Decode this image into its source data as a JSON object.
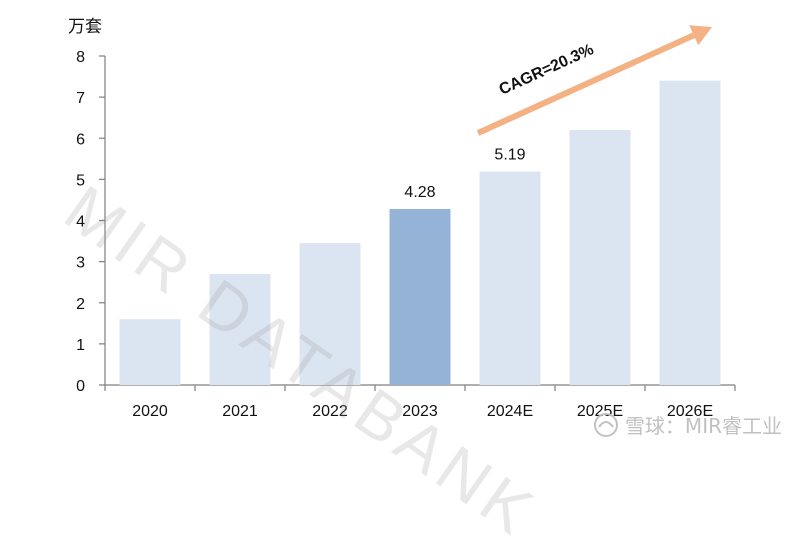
{
  "unit_label": "万套",
  "watermark_text": "MIR DATABANK",
  "footer_mark": "雪球：MIR睿工业",
  "cagr_label": "CAGR=20.3%",
  "colors": {
    "bar_default": "#dbe5f1",
    "bar_highlight": "#95b3d7",
    "axis": "#7f7f7f",
    "arrow": "#f4b183"
  },
  "chart_data": {
    "type": "bar",
    "categories": [
      "2020",
      "2021",
      "2022",
      "2023",
      "2024E",
      "2025E",
      "2026E"
    ],
    "values": [
      1.6,
      2.7,
      3.45,
      4.28,
      5.19,
      6.2,
      7.4
    ],
    "highlight_index": 3,
    "data_labels": [
      {
        "index": 3,
        "text": "4.28"
      },
      {
        "index": 4,
        "text": "5.19"
      }
    ],
    "ylim": [
      0,
      8
    ],
    "yticks": [
      0,
      1,
      2,
      3,
      4,
      5,
      6,
      7,
      8
    ],
    "grid": false,
    "ylabel": "万套",
    "annotation": "CAGR=20.3%"
  }
}
